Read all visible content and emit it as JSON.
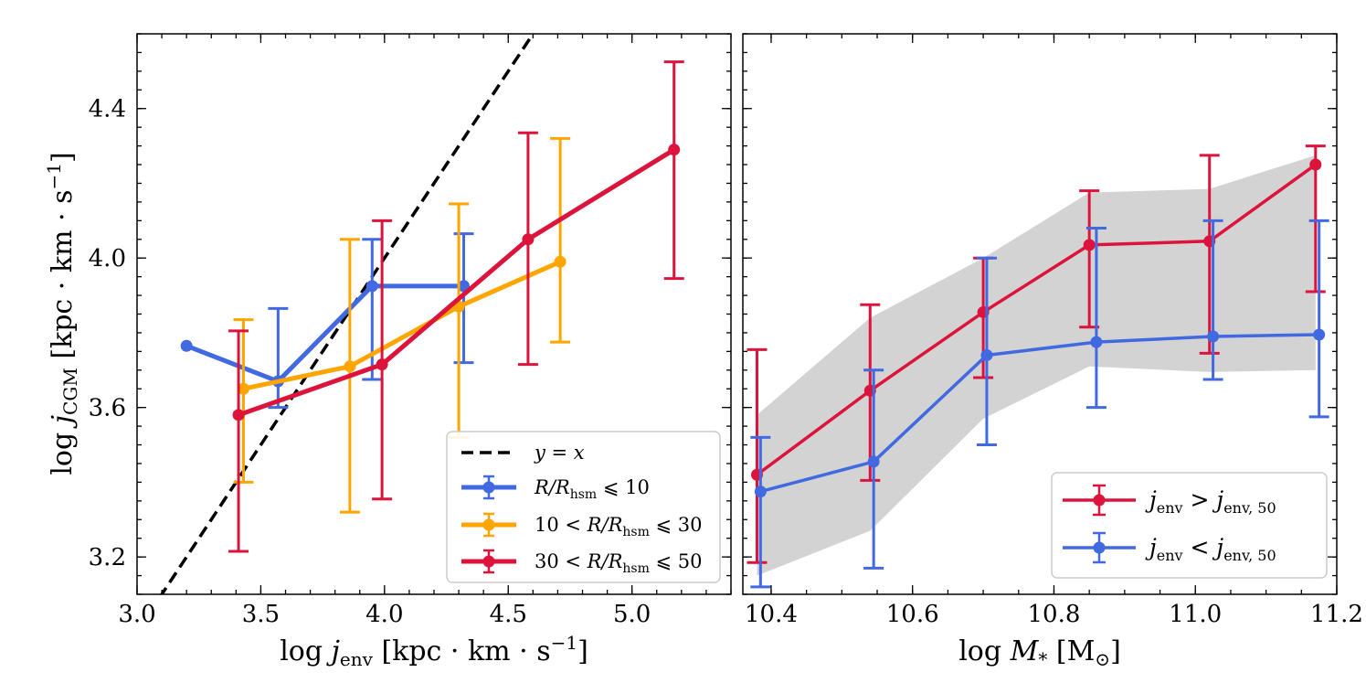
{
  "colors": {
    "blue": "#4169E1",
    "orange": "#FFA500",
    "red": "#DC143C",
    "black": "#000000",
    "band": "#D3D3D3"
  },
  "chart_data": [
    {
      "type": "line",
      "title": "",
      "xlabel": "log j_env [kpc · km · s^-1]",
      "ylabel": "log j_CGM [kpc · km · s^-1]",
      "xlim": [
        3.0,
        5.4
      ],
      "ylim": [
        3.1,
        4.6
      ],
      "xticks": [
        "3.0",
        "3.5",
        "4.0",
        "4.5",
        "5.0"
      ],
      "yticks": [
        "3.2",
        "3.6",
        "4.0",
        "4.4"
      ],
      "legend_position": "lower right",
      "reference_line": {
        "name": "y = x",
        "style": "dashed",
        "color": "#000000"
      },
      "series": [
        {
          "name": "R/R_hsm ⩽ 10",
          "color": "#4169E1",
          "x": [
            3.2,
            3.57,
            3.95,
            4.32
          ],
          "y": [
            3.765,
            3.67,
            3.925,
            3.925
          ],
          "err_low": [
            null,
            3.6,
            3.675,
            3.72
          ],
          "err_high": [
            null,
            3.865,
            4.05,
            4.065
          ]
        },
        {
          "name": "10 < R/R_hsm ⩽ 30",
          "color": "#FFA500",
          "x": [
            3.43,
            3.86,
            4.3,
            4.71
          ],
          "y": [
            3.65,
            3.71,
            3.87,
            3.99
          ],
          "err_low": [
            3.4,
            3.32,
            3.52,
            3.775
          ],
          "err_high": [
            3.835,
            4.05,
            4.145,
            4.32
          ]
        },
        {
          "name": "30 < R/R_hsm ⩽ 50",
          "color": "#DC143C",
          "x": [
            3.41,
            3.99,
            4.58,
            5.17
          ],
          "y": [
            3.58,
            3.715,
            4.05,
            4.29
          ],
          "err_low": [
            3.215,
            3.355,
            3.715,
            3.945
          ],
          "err_high": [
            3.805,
            4.1,
            4.335,
            4.525
          ]
        }
      ]
    },
    {
      "type": "line",
      "title": "",
      "xlabel": "log M* [M⊙]",
      "ylabel": "",
      "xlim": [
        10.36,
        11.2
      ],
      "ylim": [
        3.1,
        4.6
      ],
      "xticks": [
        "10.4",
        "10.6",
        "10.8",
        "11.0",
        "11.2"
      ],
      "legend_position": "lower right",
      "band": {
        "name": "scatter range",
        "color": "#D3D3D3",
        "x": [
          10.38,
          10.54,
          10.7,
          10.85,
          11.02,
          11.17
        ],
        "lower": [
          3.15,
          3.27,
          3.57,
          3.71,
          3.695,
          3.7
        ],
        "upper": [
          3.58,
          3.84,
          4.0,
          4.175,
          4.185,
          4.275
        ]
      },
      "series": [
        {
          "name": "j_env > j_env,50",
          "color": "#DC143C",
          "x": [
            10.38,
            10.54,
            10.7,
            10.85,
            11.02,
            11.17
          ],
          "y": [
            3.42,
            3.645,
            3.855,
            4.035,
            4.045,
            4.25
          ],
          "err_low": [
            3.185,
            3.405,
            3.68,
            3.815,
            3.745,
            3.91
          ],
          "err_high": [
            3.755,
            3.875,
            4.0,
            4.18,
            4.275,
            4.3
          ]
        },
        {
          "name": "j_env < j_env,50",
          "color": "#4169E1",
          "x": [
            10.385,
            10.545,
            10.705,
            10.86,
            11.025,
            11.175
          ],
          "y": [
            3.375,
            3.455,
            3.74,
            3.775,
            3.79,
            3.795
          ],
          "err_low": [
            3.12,
            3.17,
            3.5,
            3.6,
            3.675,
            3.575
          ],
          "err_high": [
            3.52,
            3.7,
            4.0,
            4.08,
            4.1,
            4.1
          ]
        }
      ]
    }
  ]
}
